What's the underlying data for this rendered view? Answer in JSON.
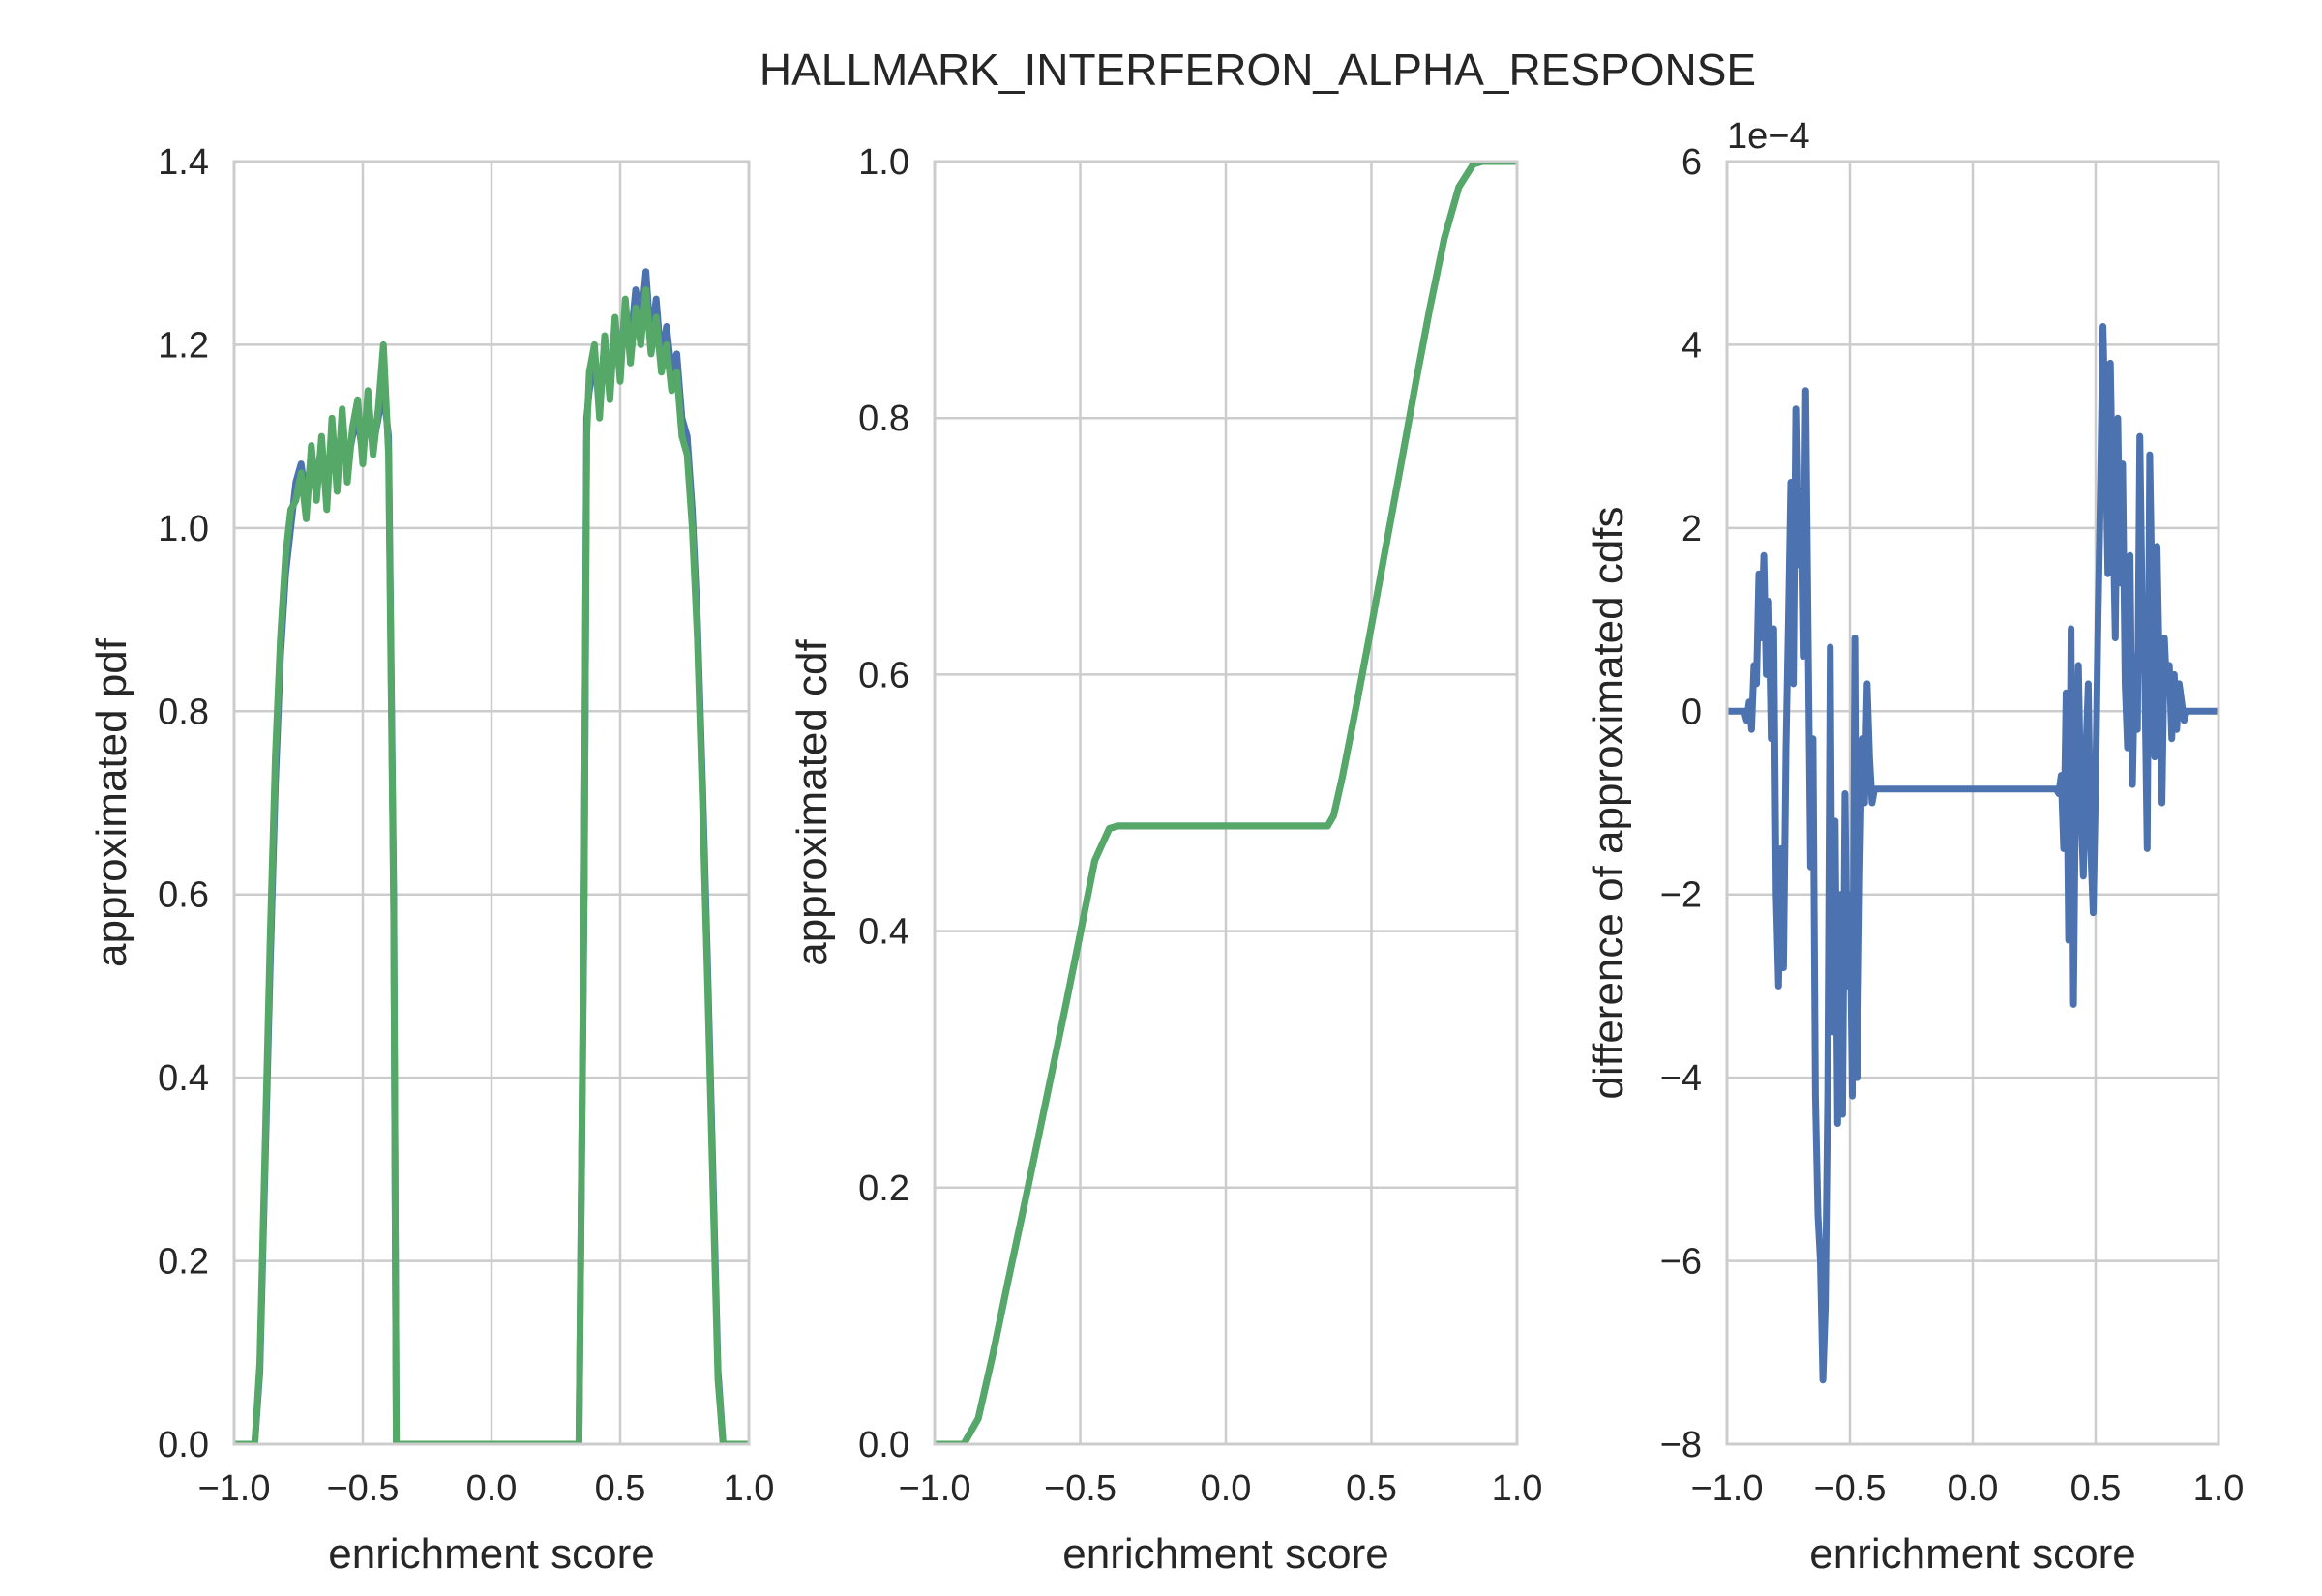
{
  "title": "HALLMARK_INTERFERON_ALPHA_RESPONSE",
  "colors": {
    "blue": "#4c72b0",
    "green": "#55a868",
    "grid": "#cccccc",
    "text": "#262626"
  },
  "chart_data": [
    {
      "type": "line",
      "xlabel": "enrichment score",
      "ylabel": "approximated pdf",
      "xlim": [
        -1.0,
        1.0
      ],
      "ylim": [
        0.0,
        1.4
      ],
      "xticks": [
        "−1.0",
        "−0.5",
        "0.0",
        "0.5",
        "1.0"
      ],
      "yticks": [
        "0.0",
        "0.2",
        "0.4",
        "0.6",
        "0.8",
        "1.0",
        "1.2",
        "1.4"
      ],
      "grid": true,
      "series": [
        {
          "color": "#4c72b0",
          "x": [
            -1.0,
            -0.92,
            -0.9,
            -0.88,
            -0.86,
            -0.84,
            -0.82,
            -0.8,
            -0.78,
            -0.76,
            -0.74,
            -0.72,
            -0.7,
            -0.68,
            -0.66,
            -0.64,
            -0.62,
            -0.6,
            -0.58,
            -0.56,
            -0.54,
            -0.52,
            -0.5,
            -0.48,
            -0.46,
            -0.44,
            -0.42,
            -0.4,
            -0.38,
            -0.37,
            -0.35,
            0.34,
            0.36,
            0.37,
            0.38,
            0.4,
            0.42,
            0.44,
            0.46,
            0.48,
            0.5,
            0.52,
            0.54,
            0.56,
            0.58,
            0.6,
            0.62,
            0.64,
            0.66,
            0.68,
            0.7,
            0.72,
            0.74,
            0.76,
            0.78,
            0.8,
            0.82,
            0.84,
            0.86,
            0.88,
            0.9,
            0.92,
            1.0
          ],
          "y": [
            0.0,
            0.0,
            0.08,
            0.3,
            0.52,
            0.72,
            0.86,
            0.95,
            1.0,
            1.05,
            1.07,
            1.03,
            1.08,
            1.05,
            1.09,
            1.04,
            1.1,
            1.06,
            1.11,
            1.07,
            1.1,
            1.12,
            1.08,
            1.13,
            1.09,
            1.12,
            1.15,
            1.1,
            0.6,
            0.0,
            0.0,
            0.0,
            0.6,
            1.12,
            1.15,
            1.18,
            1.14,
            1.2,
            1.16,
            1.22,
            1.18,
            1.24,
            1.2,
            1.26,
            1.22,
            1.28,
            1.2,
            1.25,
            1.18,
            1.22,
            1.17,
            1.19,
            1.12,
            1.1,
            1.02,
            0.9,
            0.72,
            0.52,
            0.3,
            0.08,
            0.0,
            0.0,
            0.0
          ]
        },
        {
          "color": "#55a868",
          "x": [
            -1.0,
            -0.92,
            -0.9,
            -0.88,
            -0.86,
            -0.84,
            -0.82,
            -0.8,
            -0.78,
            -0.76,
            -0.74,
            -0.72,
            -0.7,
            -0.68,
            -0.66,
            -0.64,
            -0.62,
            -0.6,
            -0.58,
            -0.56,
            -0.54,
            -0.52,
            -0.5,
            -0.48,
            -0.46,
            -0.44,
            -0.42,
            -0.4,
            -0.38,
            -0.37,
            -0.35,
            0.34,
            0.36,
            0.37,
            0.38,
            0.4,
            0.42,
            0.44,
            0.46,
            0.48,
            0.5,
            0.52,
            0.54,
            0.56,
            0.58,
            0.6,
            0.62,
            0.64,
            0.66,
            0.68,
            0.7,
            0.72,
            0.74,
            0.76,
            0.78,
            0.8,
            0.82,
            0.84,
            0.86,
            0.88,
            0.9,
            0.92,
            1.0
          ],
          "y": [
            0.0,
            0.0,
            0.09,
            0.32,
            0.55,
            0.75,
            0.88,
            0.97,
            1.02,
            1.03,
            1.06,
            1.01,
            1.09,
            1.03,
            1.1,
            1.02,
            1.12,
            1.04,
            1.13,
            1.05,
            1.11,
            1.14,
            1.07,
            1.15,
            1.08,
            1.13,
            1.2,
            1.08,
            0.58,
            0.0,
            0.0,
            0.0,
            0.62,
            1.1,
            1.17,
            1.2,
            1.12,
            1.21,
            1.14,
            1.23,
            1.16,
            1.25,
            1.18,
            1.24,
            1.2,
            1.26,
            1.19,
            1.23,
            1.17,
            1.2,
            1.15,
            1.17,
            1.1,
            1.08,
            1.0,
            0.88,
            0.7,
            0.5,
            0.28,
            0.07,
            0.0,
            0.0,
            0.0
          ]
        }
      ]
    },
    {
      "type": "line",
      "xlabel": "enrichment score",
      "ylabel": "approximated cdf",
      "xlim": [
        -1.0,
        1.0
      ],
      "ylim": [
        0.0,
        1.0
      ],
      "xticks": [
        "−1.0",
        "−0.5",
        "0.0",
        "0.5",
        "1.0"
      ],
      "yticks": [
        "0.0",
        "0.2",
        "0.4",
        "0.6",
        "0.8",
        "1.0"
      ],
      "grid": true,
      "series": [
        {
          "color": "#4c72b0",
          "x": [
            -1.0,
            -0.9,
            -0.85,
            -0.8,
            -0.75,
            -0.7,
            -0.65,
            -0.6,
            -0.55,
            -0.5,
            -0.45,
            -0.4,
            -0.37,
            -0.35,
            0.35,
            0.37,
            0.4,
            0.45,
            0.5,
            0.55,
            0.6,
            0.65,
            0.7,
            0.75,
            0.8,
            0.85,
            0.88,
            0.9,
            1.0
          ],
          "y": [
            0.0,
            0.0,
            0.02,
            0.07,
            0.125,
            0.178,
            0.232,
            0.287,
            0.342,
            0.398,
            0.455,
            0.48,
            0.482,
            0.482,
            0.482,
            0.49,
            0.52,
            0.578,
            0.638,
            0.7,
            0.762,
            0.825,
            0.885,
            0.94,
            0.98,
            0.998,
            1.0,
            1.0,
            1.0
          ]
        },
        {
          "color": "#55a868",
          "x": [
            -1.0,
            -0.9,
            -0.85,
            -0.8,
            -0.75,
            -0.7,
            -0.65,
            -0.6,
            -0.55,
            -0.5,
            -0.45,
            -0.4,
            -0.37,
            -0.35,
            0.35,
            0.37,
            0.4,
            0.45,
            0.5,
            0.55,
            0.6,
            0.65,
            0.7,
            0.75,
            0.8,
            0.85,
            0.88,
            0.9,
            1.0
          ],
          "y": [
            0.0,
            0.0,
            0.02,
            0.07,
            0.125,
            0.178,
            0.232,
            0.287,
            0.342,
            0.398,
            0.455,
            0.48,
            0.482,
            0.482,
            0.482,
            0.49,
            0.52,
            0.578,
            0.638,
            0.7,
            0.762,
            0.825,
            0.885,
            0.94,
            0.98,
            0.998,
            1.0,
            1.0,
            1.0
          ]
        }
      ]
    },
    {
      "type": "line",
      "xlabel": "enrichment score",
      "ylabel": "difference of approximated cdfs",
      "offset_label": "1e−4",
      "xlim": [
        -1.0,
        1.0
      ],
      "ylim": [
        -8,
        6
      ],
      "xticks": [
        "−1.0",
        "−0.5",
        "0.0",
        "0.5",
        "1.0"
      ],
      "yticks": [
        "−8",
        "−6",
        "−4",
        "−2",
        "0",
        "2",
        "4",
        "6"
      ],
      "grid": true,
      "series": [
        {
          "color": "#4c72b0",
          "x": [
            -1.0,
            -0.95,
            -0.93,
            -0.92,
            -0.91,
            -0.9,
            -0.89,
            -0.88,
            -0.87,
            -0.86,
            -0.85,
            -0.84,
            -0.83,
            -0.82,
            -0.81,
            -0.8,
            -0.79,
            -0.78,
            -0.77,
            -0.76,
            -0.75,
            -0.74,
            -0.73,
            -0.72,
            -0.71,
            -0.7,
            -0.69,
            -0.68,
            -0.67,
            -0.66,
            -0.65,
            -0.64,
            -0.63,
            -0.62,
            -0.61,
            -0.6,
            -0.59,
            -0.58,
            -0.57,
            -0.56,
            -0.55,
            -0.54,
            -0.53,
            -0.52,
            -0.51,
            -0.5,
            -0.49,
            -0.48,
            -0.47,
            -0.46,
            -0.45,
            -0.44,
            -0.43,
            -0.42,
            -0.41,
            -0.4,
            -0.38,
            -0.36,
            0.34,
            0.35,
            0.36,
            0.37,
            0.38,
            0.39,
            0.4,
            0.41,
            0.42,
            0.43,
            0.44,
            0.45,
            0.46,
            0.47,
            0.48,
            0.49,
            0.5,
            0.51,
            0.52,
            0.53,
            0.54,
            0.55,
            0.56,
            0.57,
            0.58,
            0.59,
            0.6,
            0.61,
            0.62,
            0.63,
            0.64,
            0.65,
            0.66,
            0.67,
            0.68,
            0.69,
            0.7,
            0.71,
            0.72,
            0.73,
            0.74,
            0.75,
            0.76,
            0.77,
            0.78,
            0.79,
            0.8,
            0.81,
            0.82,
            0.83,
            0.84,
            0.85,
            0.86,
            0.87,
            0.88,
            0.9,
            0.95,
            1.0
          ],
          "y": [
            0.0,
            0.0,
            0.0,
            -0.1,
            0.1,
            -0.2,
            0.5,
            0.3,
            1.5,
            0.8,
            1.7,
            0.4,
            1.2,
            -0.3,
            0.9,
            -2.0,
            -3.0,
            -1.5,
            -2.8,
            -0.4,
            1.0,
            2.5,
            0.3,
            3.3,
            1.6,
            2.4,
            0.6,
            3.5,
            0.9,
            -1.7,
            -0.3,
            -4.2,
            -5.5,
            -6.0,
            -7.3,
            -6.5,
            -4.2,
            0.7,
            -3.5,
            -1.2,
            -4.5,
            -2.0,
            -4.4,
            -0.9,
            -3.0,
            -2.0,
            -4.2,
            0.8,
            -4.0,
            -1.8,
            -0.3,
            -1.0,
            0.3,
            -0.5,
            -1.0,
            -0.85,
            -0.85,
            -0.85,
            -0.85,
            -0.9,
            -0.7,
            -1.5,
            0.2,
            -2.5,
            0.9,
            -3.2,
            -0.4,
            0.5,
            -1.0,
            -1.8,
            -0.5,
            0.3,
            -1.5,
            -2.2,
            -0.8,
            1.0,
            2.5,
            4.2,
            3.0,
            1.5,
            3.8,
            2.2,
            0.8,
            3.2,
            1.4,
            2.7,
            0.3,
            -0.4,
            1.7,
            -0.8,
            0.6,
            -0.2,
            3.0,
            1.0,
            0.4,
            -1.5,
            2.8,
            1.2,
            -0.5,
            1.8,
            0.4,
            -1.0,
            0.8,
            0.2,
            0.5,
            -0.3,
            0.4,
            -0.2,
            0.3,
            0.1,
            -0.1,
            0.0,
            0.0,
            0.0,
            0.0,
            0.0
          ]
        }
      ]
    }
  ]
}
